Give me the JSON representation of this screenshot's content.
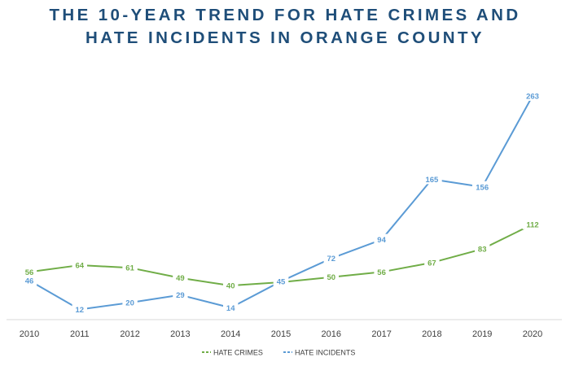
{
  "title_line1": "THE 10-YEAR TREND FOR HATE CRIMES AND",
  "title_line2": "HATE INCIDENTS IN ORANGE COUNTY",
  "chart_data": {
    "type": "line",
    "title": "THE 10-YEAR TREND FOR HATE CRIMES AND HATE INCIDENTS IN ORANGE COUNTY",
    "x": [
      "2010",
      "2011",
      "2012",
      "2013",
      "2014",
      "2015",
      "2016",
      "2017",
      "2018",
      "2019",
      "2020"
    ],
    "series": [
      {
        "name": "HATE CRIMES",
        "color": "#70ad47",
        "values": [
          56,
          64,
          61,
          49,
          40,
          44,
          50,
          56,
          67,
          83,
          112
        ]
      },
      {
        "name": "HATE INCIDENTS",
        "color": "#5b9bd5",
        "values": [
          46,
          12,
          20,
          29,
          14,
          45,
          72,
          94,
          165,
          156,
          263
        ]
      }
    ],
    "data_labels": {
      "HATE CRIMES": [
        "56",
        "64",
        "61",
        "49",
        "40",
        "44",
        "50",
        "56",
        "67",
        "83",
        "112"
      ],
      "HATE INCIDENTS": [
        "46",
        "12",
        "20",
        "29",
        "14",
        "45",
        "72",
        "94",
        "165",
        "156",
        "263"
      ]
    },
    "xlabel": "",
    "ylabel": "",
    "ylim": [
      0,
      280
    ],
    "grid": false,
    "y_axis_visible": false,
    "legend_position": "bottom",
    "legend_style": "dashed"
  }
}
